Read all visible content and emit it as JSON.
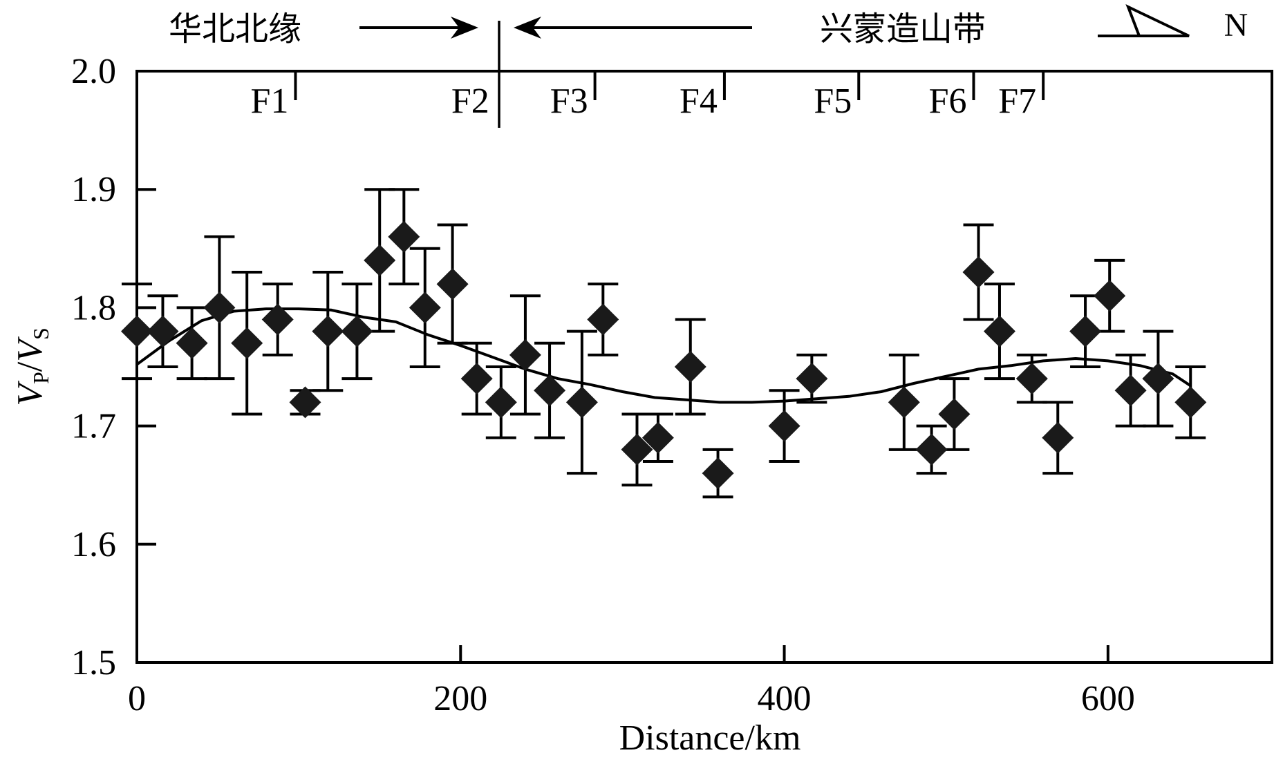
{
  "chart_data": {
    "type": "scatter",
    "ylabel": {
      "v1": "V",
      "s1": "P",
      "slash": "/",
      "v2": "V",
      "s2": "S"
    },
    "xlabel": "Distance/km",
    "xlim": [
      0,
      700
    ],
    "ylim": [
      1.5,
      2.0
    ],
    "x_ticks": [
      0,
      200,
      400,
      600
    ],
    "y_ticks": [
      1.5,
      1.6,
      1.7,
      1.8,
      1.9,
      2.0
    ],
    "y_tick_labels": [
      "1.5",
      "1.6",
      "1.7",
      "1.8",
      "1.9",
      "2.0"
    ],
    "x_tick_labels": [
      "0",
      "200",
      "400",
      "600"
    ],
    "grid": false,
    "regions": {
      "left_label": "华北北缘",
      "right_label": "兴蒙造山带",
      "boundary_x": 222
    },
    "north_label": "N",
    "faults": [
      {
        "label": "F1",
        "x": 98
      },
      {
        "label": "F2",
        "x": 222
      },
      {
        "label": "F3",
        "x": 283
      },
      {
        "label": "F4",
        "x": 363
      },
      {
        "label": "F5",
        "x": 446
      },
      {
        "label": "F6",
        "x": 517
      },
      {
        "label": "F7",
        "x": 560
      }
    ],
    "points": [
      {
        "x": 0,
        "y": 1.78,
        "lo": 1.74,
        "hi": 1.82
      },
      {
        "x": 16,
        "y": 1.78,
        "lo": 1.75,
        "hi": 1.81
      },
      {
        "x": 34,
        "y": 1.77,
        "lo": 1.74,
        "hi": 1.8
      },
      {
        "x": 51,
        "y": 1.8,
        "lo": 1.74,
        "hi": 1.86
      },
      {
        "x": 68,
        "y": 1.77,
        "lo": 1.71,
        "hi": 1.83
      },
      {
        "x": 87,
        "y": 1.79,
        "lo": 1.76,
        "hi": 1.82
      },
      {
        "x": 104,
        "y": 1.72,
        "lo": 1.71,
        "hi": 1.73
      },
      {
        "x": 118,
        "y": 1.78,
        "lo": 1.73,
        "hi": 1.83
      },
      {
        "x": 136,
        "y": 1.78,
        "lo": 1.74,
        "hi": 1.82
      },
      {
        "x": 150,
        "y": 1.84,
        "lo": 1.78,
        "hi": 1.9
      },
      {
        "x": 165,
        "y": 1.86,
        "lo": 1.82,
        "hi": 1.9
      },
      {
        "x": 178,
        "y": 1.8,
        "lo": 1.75,
        "hi": 1.85
      },
      {
        "x": 195,
        "y": 1.82,
        "lo": 1.77,
        "hi": 1.87
      },
      {
        "x": 210,
        "y": 1.74,
        "lo": 1.71,
        "hi": 1.77
      },
      {
        "x": 225,
        "y": 1.72,
        "lo": 1.69,
        "hi": 1.75
      },
      {
        "x": 240,
        "y": 1.76,
        "lo": 1.71,
        "hi": 1.81
      },
      {
        "x": 255,
        "y": 1.73,
        "lo": 1.69,
        "hi": 1.77
      },
      {
        "x": 275,
        "y": 1.72,
        "lo": 1.66,
        "hi": 1.78
      },
      {
        "x": 288,
        "y": 1.79,
        "lo": 1.76,
        "hi": 1.82
      },
      {
        "x": 309,
        "y": 1.68,
        "lo": 1.65,
        "hi": 1.71
      },
      {
        "x": 322,
        "y": 1.69,
        "lo": 1.67,
        "hi": 1.71
      },
      {
        "x": 342,
        "y": 1.75,
        "lo": 1.71,
        "hi": 1.79
      },
      {
        "x": 359,
        "y": 1.66,
        "lo": 1.64,
        "hi": 1.68
      },
      {
        "x": 400,
        "y": 1.7,
        "lo": 1.67,
        "hi": 1.73
      },
      {
        "x": 417,
        "y": 1.74,
        "lo": 1.72,
        "hi": 1.76
      },
      {
        "x": 474,
        "y": 1.72,
        "lo": 1.68,
        "hi": 1.76
      },
      {
        "x": 491,
        "y": 1.68,
        "lo": 1.66,
        "hi": 1.7
      },
      {
        "x": 505,
        "y": 1.71,
        "lo": 1.68,
        "hi": 1.74
      },
      {
        "x": 520,
        "y": 1.83,
        "lo": 1.79,
        "hi": 1.87
      },
      {
        "x": 533,
        "y": 1.78,
        "lo": 1.74,
        "hi": 1.82
      },
      {
        "x": 553,
        "y": 1.74,
        "lo": 1.72,
        "hi": 1.76
      },
      {
        "x": 569,
        "y": 1.69,
        "lo": 1.66,
        "hi": 1.72
      },
      {
        "x": 586,
        "y": 1.78,
        "lo": 1.75,
        "hi": 1.81
      },
      {
        "x": 601,
        "y": 1.81,
        "lo": 1.78,
        "hi": 1.84
      },
      {
        "x": 614,
        "y": 1.73,
        "lo": 1.7,
        "hi": 1.76
      },
      {
        "x": 631,
        "y": 1.74,
        "lo": 1.7,
        "hi": 1.78
      },
      {
        "x": 651,
        "y": 1.72,
        "lo": 1.69,
        "hi": 1.75
      }
    ],
    "smoothed_curve": {
      "x": [
        0,
        20,
        40,
        60,
        80,
        100,
        120,
        140,
        150,
        160,
        180,
        200,
        220,
        240,
        260,
        280,
        300,
        320,
        340,
        360,
        380,
        400,
        420,
        440,
        460,
        480,
        500,
        520,
        540,
        560,
        580,
        600,
        620,
        640,
        651
      ],
      "y": [
        1.752,
        1.772,
        1.789,
        1.797,
        1.799,
        1.799,
        1.798,
        1.792,
        1.79,
        1.788,
        1.777,
        1.768,
        1.758,
        1.748,
        1.74,
        1.735,
        1.729,
        1.724,
        1.722,
        1.72,
        1.72,
        1.721,
        1.723,
        1.725,
        1.729,
        1.736,
        1.742,
        1.748,
        1.751,
        1.755,
        1.757,
        1.755,
        1.751,
        1.744,
        1.734
      ]
    }
  }
}
